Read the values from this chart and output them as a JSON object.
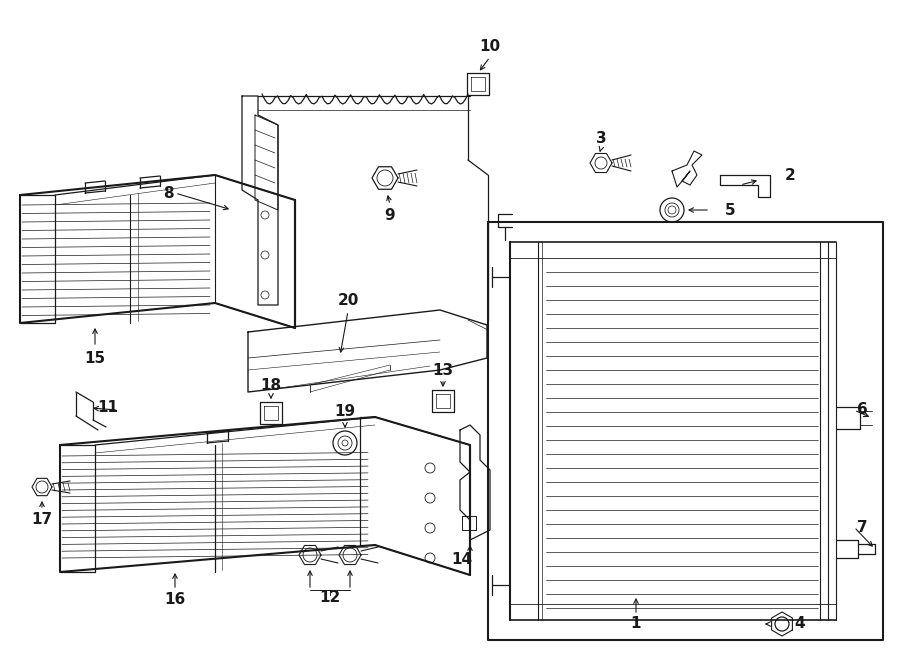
{
  "bg": "#ffffff",
  "lc": "#1a1a1a",
  "fig_w": 9.0,
  "fig_h": 6.62,
  "dpi": 100,
  "lw": 1.0,
  "label_fs": 11,
  "label_fs_sm": 10
}
